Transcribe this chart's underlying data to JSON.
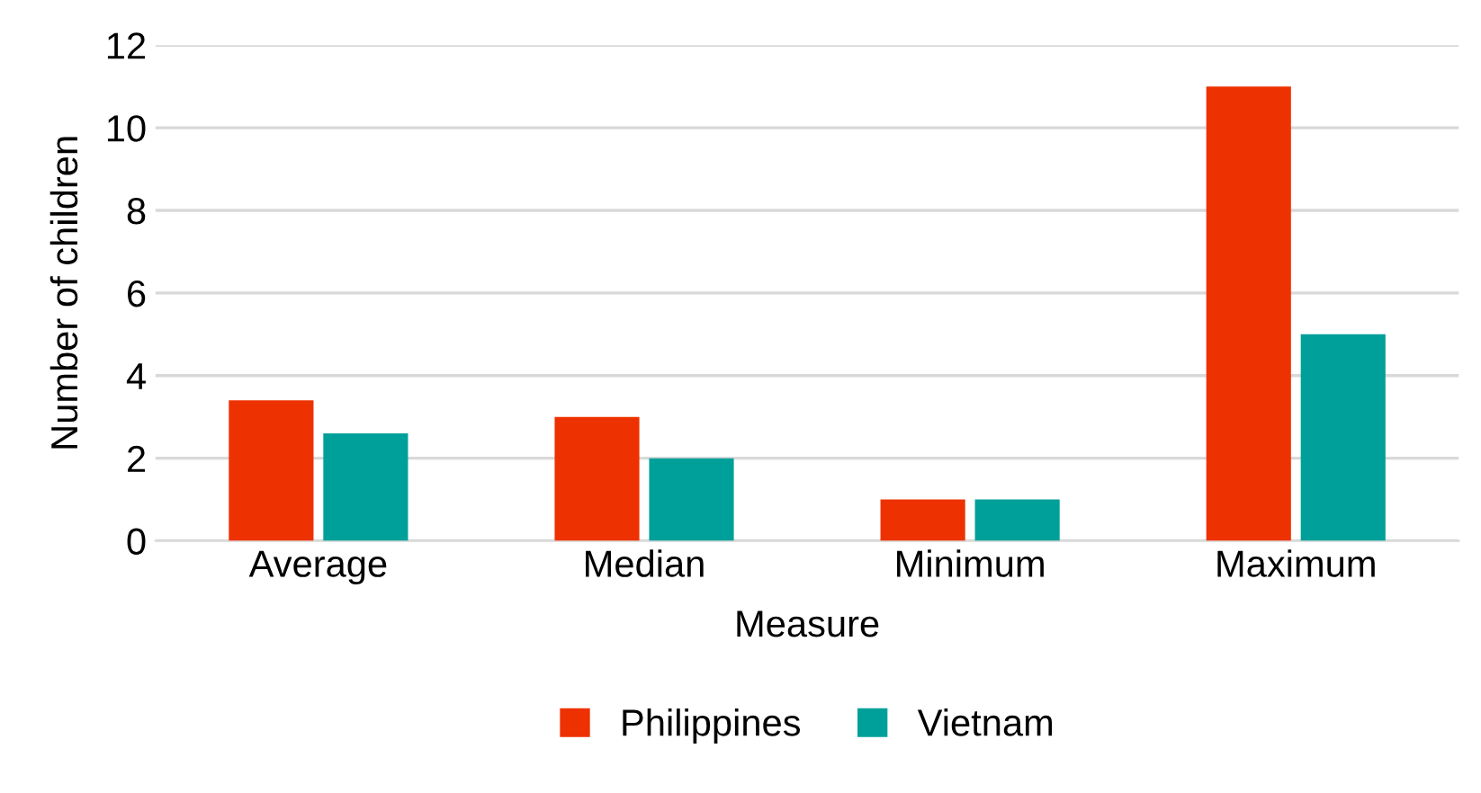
{
  "chart_data": {
    "type": "bar",
    "xlabel": "Measure",
    "ylabel": "Number of children",
    "categories": [
      "Average",
      "Median",
      "Minimum",
      "Maximum"
    ],
    "series": [
      {
        "name": "Philippines",
        "color": "#ee3100",
        "values": [
          3.4,
          3,
          1,
          11
        ]
      },
      {
        "name": "Vietnam",
        "color": "#00a09a",
        "values": [
          2.6,
          2,
          1,
          5
        ]
      }
    ],
    "ylim": [
      0,
      12
    ],
    "yticks": [
      0,
      2,
      4,
      6,
      8,
      10,
      12
    ],
    "grid": "y",
    "legend": "bottom"
  }
}
